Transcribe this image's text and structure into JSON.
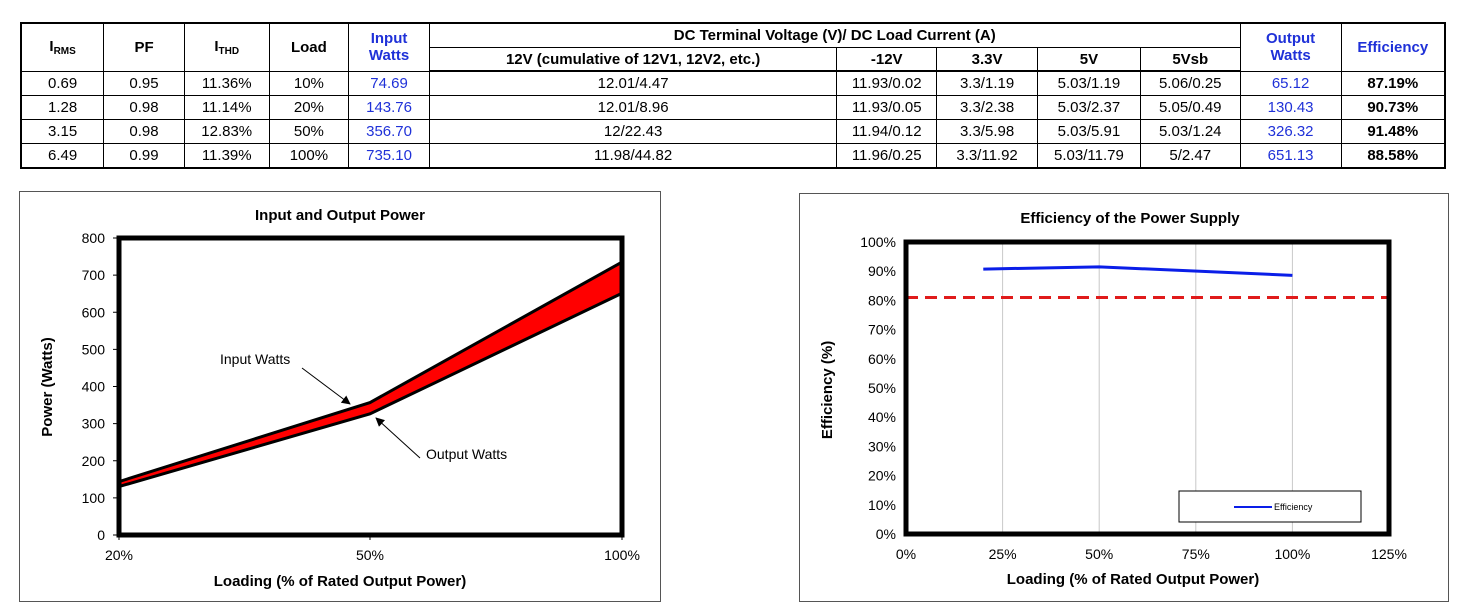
{
  "table": {
    "headers": {
      "irms_main": "I",
      "irms_sub": "RMS",
      "pf": "PF",
      "ithd_main": "I",
      "ithd_sub": "THD",
      "load": "Load",
      "input_watts_1": "Input",
      "input_watts_2": "Watts",
      "dc_group": "DC Terminal Voltage (V)/ DC Load Current (A)",
      "v12": "12V (cumulative of 12V1, 12V2, etc.)",
      "vneg12": "-12V",
      "v33": "3.3V",
      "v5": "5V",
      "v5sb": "5Vsb",
      "output_watts_1": "Output",
      "output_watts_2": "Watts",
      "efficiency": "Efficiency"
    },
    "rows": [
      [
        "0.69",
        "0.95",
        "11.36%",
        "10%",
        "74.69",
        "12.01/4.47",
        "11.93/0.02",
        "3.3/1.19",
        "5.03/1.19",
        "5.06/0.25",
        "65.12",
        "87.19%"
      ],
      [
        "1.28",
        "0.98",
        "11.14%",
        "20%",
        "143.76",
        "12.01/8.96",
        "11.93/0.05",
        "3.3/2.38",
        "5.03/2.37",
        "5.05/0.49",
        "130.43",
        "90.73%"
      ],
      [
        "3.15",
        "0.98",
        "12.83%",
        "50%",
        "356.70",
        "12/22.43",
        "11.94/0.12",
        "3.3/5.98",
        "5.03/5.91",
        "5.03/1.24",
        "326.32",
        "91.48%"
      ],
      [
        "6.49",
        "0.99",
        "11.39%",
        "100%",
        "735.10",
        "11.98/44.82",
        "11.96/0.25",
        "3.3/11.92",
        "5.03/11.79",
        "5/2.47",
        "651.13",
        "88.58%"
      ]
    ]
  },
  "colors": {
    "blue_text": "#1f31d8",
    "band_fill": "#ff0000",
    "eff_line": "#0a1ee8",
    "threshold_line": "#e01b1b"
  },
  "chart_data": [
    {
      "type": "area",
      "title": "Input and Output Power",
      "xlabel": "Loading (% of Rated Output Power)",
      "ylabel": "Power (Watts)",
      "x_ticks": [
        "20%",
        "50%",
        "100%"
      ],
      "x": [
        "20%",
        "50%",
        "100%"
      ],
      "ylim": [
        0,
        800
      ],
      "y_ticks": [
        "0",
        "100",
        "200",
        "300",
        "400",
        "500",
        "600",
        "700",
        "800"
      ],
      "series": [
        {
          "name": "Input Watts",
          "values": [
            143.76,
            356.7,
            735.1
          ]
        },
        {
          "name": "Output Watts",
          "values": [
            130.43,
            326.32,
            651.13
          ]
        }
      ],
      "annotations": [
        "Input Watts",
        "Output Watts"
      ],
      "grid": false
    },
    {
      "type": "line",
      "title": "Efficiency of the Power Supply",
      "xlabel": "Loading (% of Rated Output Power)",
      "ylabel": "Efficiency (%)",
      "xlim": [
        0,
        125
      ],
      "x_ticks": [
        "0%",
        "25%",
        "50%",
        "75%",
        "100%",
        "125%"
      ],
      "ylim": [
        0,
        100
      ],
      "y_ticks": [
        "0%",
        "10%",
        "20%",
        "30%",
        "40%",
        "50%",
        "60%",
        "70%",
        "80%",
        "90%",
        "100%"
      ],
      "series": [
        {
          "name": "Efficiency",
          "x": [
            20,
            50,
            100
          ],
          "values": [
            90.73,
            91.48,
            88.58
          ]
        }
      ],
      "threshold": {
        "value": 81,
        "style": "dashed"
      },
      "legend": "bottom-right",
      "grid": true
    }
  ]
}
